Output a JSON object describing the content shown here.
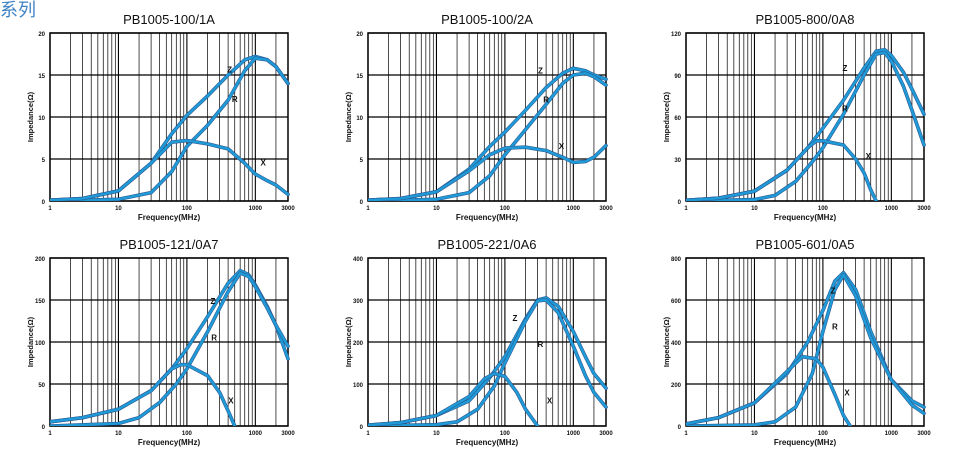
{
  "page": {
    "series_title": "系列"
  },
  "colors": {
    "curve": "#1f9ad6",
    "curve_outline": "#2a4f8a",
    "peak_tint": "#d23a4a",
    "grid": "#000000",
    "text": "#111111"
  },
  "chart_data": [
    {
      "type": "line",
      "title": "PB1005-100/1A",
      "xlabel": "Frequency(MHz)",
      "ylabel": "Impedance(Ω)",
      "xscale": "log",
      "xlim": [
        1,
        3000
      ],
      "xticks": [
        1,
        10,
        100,
        1000,
        3000
      ],
      "xticklabels": [
        "1",
        "10",
        "100",
        "1000",
        "3000"
      ],
      "ylim": [
        0,
        20
      ],
      "yticks": [
        0,
        5,
        10,
        15,
        20
      ],
      "yticklabels": [
        "0",
        "5",
        "10",
        "15",
        "20"
      ],
      "grid": true,
      "series": [
        {
          "name": "Z",
          "x": [
            1,
            3,
            10,
            30,
            60,
            100,
            200,
            400,
            700,
            1000,
            1500,
            2000,
            3000
          ],
          "y": [
            0.1,
            0.3,
            1.2,
            4.5,
            8,
            10.2,
            12.5,
            15,
            16.8,
            17.2,
            16.8,
            16,
            14
          ]
        },
        {
          "name": "R",
          "x": [
            1,
            10,
            30,
            60,
            100,
            200,
            400,
            700,
            1000,
            1500,
            2000,
            3000
          ],
          "y": [
            0,
            0.2,
            1,
            3.5,
            6.5,
            9,
            12,
            15.5,
            17,
            16.8,
            16,
            14
          ]
        },
        {
          "name": "X",
          "x": [
            1,
            3,
            10,
            30,
            60,
            100,
            200,
            400,
            700,
            1000,
            1500,
            2000,
            3000
          ],
          "y": [
            0.1,
            0.3,
            1.2,
            4.5,
            7,
            7.2,
            6.8,
            6.2,
            4.5,
            3.2,
            2.4,
            1.9,
            0.8
          ]
        }
      ],
      "labels": [
        {
          "text": "Z",
          "x": 420,
          "y": 15.3
        },
        {
          "text": "R",
          "x": 500,
          "y": 11.8
        },
        {
          "text": "X",
          "x": 1300,
          "y": 4.2
        }
      ]
    },
    {
      "type": "line",
      "title": "PB1005-100/2A",
      "xlabel": "Frequency(MHz)",
      "ylabel": "Impedance(Ω)",
      "xscale": "log",
      "xlim": [
        1,
        3000
      ],
      "xticks": [
        1,
        10,
        100,
        1000,
        3000
      ],
      "xticklabels": [
        "1",
        "10",
        "100",
        "1000",
        "3000"
      ],
      "ylim": [
        0,
        20
      ],
      "yticks": [
        0,
        5,
        10,
        15,
        20
      ],
      "yticklabels": [
        "0",
        "5",
        "10",
        "15",
        "20"
      ],
      "grid": true,
      "series": [
        {
          "name": "Z",
          "x": [
            1,
            3,
            10,
            30,
            60,
            100,
            200,
            400,
            700,
            1000,
            1500,
            2000,
            3000
          ],
          "y": [
            0.1,
            0.3,
            1.1,
            3.8,
            6.5,
            8.2,
            10.8,
            13.5,
            15.2,
            15.8,
            15.5,
            15,
            14.5
          ]
        },
        {
          "name": "R",
          "x": [
            1,
            10,
            30,
            60,
            100,
            200,
            400,
            700,
            1000,
            1500,
            2000,
            3000
          ],
          "y": [
            0,
            0.2,
            1,
            3,
            5.5,
            8.5,
            11.5,
            14,
            15,
            15.2,
            14.8,
            13.8
          ]
        },
        {
          "name": "X",
          "x": [
            1,
            3,
            10,
            30,
            60,
            100,
            200,
            400,
            700,
            1000,
            1500,
            2000,
            3000
          ],
          "y": [
            0.1,
            0.3,
            1.1,
            3.6,
            5.5,
            6.3,
            6.4,
            6,
            5.2,
            4.6,
            4.7,
            5.2,
            6.6
          ]
        }
      ],
      "labels": [
        {
          "text": "Z",
          "x": 330,
          "y": 15.2
        },
        {
          "text": "R",
          "x": 400,
          "y": 11.7
        },
        {
          "text": "X",
          "x": 670,
          "y": 6.2
        }
      ]
    },
    {
      "type": "line",
      "title": "PB1005-800/0A8",
      "xlabel": "Frequency(MHz)",
      "ylabel": "Impedance(Ω)",
      "xscale": "log",
      "xlim": [
        1,
        3000
      ],
      "xticks": [
        1,
        10,
        100,
        1000,
        3000
      ],
      "xticklabels": [
        "1",
        "10",
        "100",
        "1000",
        "3000"
      ],
      "ylim": [
        0,
        120
      ],
      "yticks": [
        0,
        30,
        60,
        90,
        120
      ],
      "yticklabels": [
        "0",
        "30",
        "60",
        "90",
        "120"
      ],
      "grid": true,
      "series": [
        {
          "name": "Z",
          "x": [
            1,
            3,
            10,
            30,
            60,
            100,
            200,
            400,
            600,
            800,
            1000,
            1500,
            2000,
            3000
          ],
          "y": [
            0.5,
            2,
            7,
            22,
            38,
            52,
            72,
            95,
            107,
            108,
            104,
            92,
            80,
            62
          ]
        },
        {
          "name": "R",
          "x": [
            1,
            10,
            20,
            40,
            70,
            100,
            200,
            400,
            600,
            800,
            1000,
            1500,
            2000,
            3000
          ],
          "y": [
            0,
            1,
            4,
            14,
            28,
            38,
            62,
            90,
            105,
            106,
            100,
            82,
            65,
            40
          ]
        },
        {
          "name": "X",
          "x": [
            1,
            3,
            10,
            30,
            60,
            80,
            100,
            200,
            300,
            400,
            500,
            600
          ],
          "y": [
            0.5,
            2,
            7,
            22,
            38,
            43,
            43,
            40,
            30,
            20,
            8,
            0
          ]
        }
      ],
      "labels": [
        {
          "text": "Z",
          "x": 210,
          "y": 93
        },
        {
          "text": "R",
          "x": 210,
          "y": 64
        },
        {
          "text": "X",
          "x": 460,
          "y": 30
        }
      ]
    },
    {
      "type": "line",
      "title": "PB1005-121/0A7",
      "xlabel": "Frequency(MHz)",
      "ylabel": "Impedance(Ω)",
      "xscale": "log",
      "xlim": [
        1,
        3000
      ],
      "xticks": [
        1,
        10,
        100,
        1000,
        3000
      ],
      "xticklabels": [
        "1",
        "10",
        "100",
        "1000",
        "3000"
      ],
      "ylim": [
        0,
        200
      ],
      "yticks": [
        0,
        50,
        100,
        150,
        200
      ],
      "yticklabels": [
        "0",
        "50",
        "100",
        "150",
        "200"
      ],
      "grid": true,
      "series": [
        {
          "name": "Z",
          "x": [
            1,
            3,
            10,
            30,
            60,
            100,
            200,
            400,
            600,
            800,
            1000,
            1500,
            2000,
            3000
          ],
          "y": [
            5,
            10,
            20,
            42,
            68,
            92,
            130,
            170,
            185,
            180,
            168,
            142,
            120,
            80
          ]
        },
        {
          "name": "R",
          "x": [
            1,
            10,
            20,
            40,
            70,
            100,
            200,
            400,
            600,
            800,
            1000,
            1500,
            2000,
            3000
          ],
          "y": [
            0,
            3,
            10,
            28,
            50,
            68,
            112,
            160,
            182,
            178,
            166,
            140,
            120,
            95
          ]
        },
        {
          "name": "X",
          "x": [
            1,
            3,
            10,
            30,
            60,
            80,
            100,
            200,
            300,
            400,
            500
          ],
          "y": [
            5,
            10,
            20,
            42,
            68,
            73,
            73,
            60,
            40,
            18,
            0
          ]
        }
      ],
      "labels": [
        {
          "text": "Z",
          "x": 240,
          "y": 145
        },
        {
          "text": "R",
          "x": 250,
          "y": 102
        },
        {
          "text": "X",
          "x": 440,
          "y": 27
        }
      ]
    },
    {
      "type": "line",
      "title": "PB1005-221/0A6",
      "xlabel": "Frequency(MHz)",
      "ylabel": "Impedance(Ω)",
      "xscale": "log",
      "xlim": [
        1,
        3000
      ],
      "xticks": [
        1,
        10,
        100,
        1000,
        3000
      ],
      "xticklabels": [
        "1",
        "10",
        "100",
        "1000",
        "3000"
      ],
      "ylim": [
        0,
        400
      ],
      "yticks": [
        0,
        100,
        200,
        300,
        400
      ],
      "yticklabels": [
        "0",
        "100",
        "200",
        "300",
        "400"
      ],
      "grid": true,
      "series": [
        {
          "name": "Z",
          "x": [
            1,
            3,
            10,
            30,
            60,
            100,
            200,
            300,
            400,
            600,
            1000,
            1500,
            2000,
            3000
          ],
          "y": [
            2,
            8,
            25,
            60,
            115,
            165,
            255,
            300,
            305,
            285,
            225,
            165,
            125,
            90
          ]
        },
        {
          "name": "R",
          "x": [
            1,
            10,
            20,
            40,
            70,
            100,
            200,
            300,
            400,
            600,
            1000,
            1500,
            2000,
            3000
          ],
          "y": [
            0,
            3,
            10,
            40,
            95,
            150,
            250,
            298,
            300,
            270,
            190,
            120,
            80,
            45
          ]
        },
        {
          "name": "X",
          "x": [
            1,
            3,
            10,
            30,
            50,
            70,
            100,
            150,
            200,
            300
          ],
          "y": [
            2,
            8,
            25,
            70,
            112,
            125,
            118,
            80,
            40,
            0
          ]
        }
      ],
      "labels": [
        {
          "text": "Z",
          "x": 140,
          "y": 250
        },
        {
          "text": "R",
          "x": 330,
          "y": 188
        },
        {
          "text": "X",
          "x": 450,
          "y": 53
        }
      ]
    },
    {
      "type": "line",
      "title": "PB1005-601/0A5",
      "xlabel": "Frequency(MHz)",
      "ylabel": "Impedance(Ω)",
      "xscale": "log",
      "xlim": [
        1,
        3000
      ],
      "xticks": [
        1,
        10,
        100,
        1000,
        3000
      ],
      "xticklabels": [
        "1",
        "10",
        "100",
        "1000",
        "3000"
      ],
      "ylim": [
        0,
        800
      ],
      "yticks": [
        0,
        200,
        400,
        600,
        800
      ],
      "yticklabels": [
        "0",
        "200",
        "400",
        "600",
        "800"
      ],
      "grid": true,
      "series": [
        {
          "name": "Z",
          "x": [
            1,
            3,
            10,
            30,
            60,
            100,
            150,
            200,
            300,
            500,
            1000,
            2000,
            3000
          ],
          "y": [
            10,
            40,
            110,
            250,
            400,
            550,
            690,
            730,
            650,
            450,
            220,
            120,
            90
          ]
        },
        {
          "name": "R",
          "x": [
            1,
            10,
            20,
            40,
            70,
            100,
            150,
            200,
            300,
            500,
            1000,
            2000,
            3000
          ],
          "y": [
            0,
            5,
            20,
            90,
            250,
            450,
            650,
            720,
            620,
            420,
            220,
            100,
            60
          ]
        },
        {
          "name": "X",
          "x": [
            1,
            3,
            10,
            30,
            50,
            80,
            100,
            150,
            200,
            250
          ],
          "y": [
            10,
            40,
            110,
            260,
            330,
            320,
            280,
            150,
            50,
            0
          ]
        }
      ],
      "labels": [
        {
          "text": "Z",
          "x": 140,
          "y": 630
        },
        {
          "text": "R",
          "x": 150,
          "y": 460
        },
        {
          "text": "X",
          "x": 225,
          "y": 145
        }
      ]
    }
  ]
}
